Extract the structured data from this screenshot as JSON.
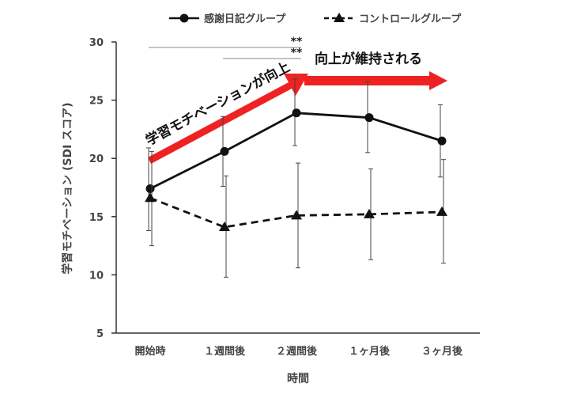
{
  "chart_data": {
    "type": "line",
    "categories": [
      "開始時",
      "１週間後",
      "２週間後",
      "１ヶ月後",
      "３ヶ月後"
    ],
    "xlabel": "時間",
    "ylabel": "学習モチベーション (SDI スコア)",
    "ylim": [
      5,
      30
    ],
    "yticks": [
      5,
      10,
      15,
      20,
      25,
      30
    ],
    "grid": false,
    "legend_position": "top",
    "series": [
      {
        "name": "感謝日記グループ",
        "values": [
          17.4,
          20.6,
          23.9,
          23.5,
          21.5
        ],
        "error_low": [
          13.8,
          17.6,
          21.1,
          20.5,
          18.4
        ],
        "error_high": [
          20.9,
          23.6,
          26.8,
          26.6,
          24.6
        ],
        "line_style": "solid",
        "marker": "circle",
        "color": "#111111"
      },
      {
        "name": "コントロールグループ",
        "values": [
          16.6,
          14.1,
          15.1,
          15.2,
          15.4
        ],
        "error_low": [
          12.5,
          9.8,
          10.6,
          11.3,
          11.0
        ],
        "error_high": [
          20.6,
          18.5,
          19.6,
          19.1,
          19.9
        ],
        "line_style": "dashed",
        "marker": "triangle",
        "color": "#111111"
      }
    ],
    "significance": [
      {
        "from": "開始時",
        "to": "２週間後",
        "label": "**"
      },
      {
        "from": "１週間後",
        "to": "２週間後",
        "label": "**"
      }
    ],
    "annotations": {
      "rise_label": "学習モチベーションが向上",
      "maintain_label": "向上が維持される",
      "arrow_color": "#ee2222"
    }
  }
}
